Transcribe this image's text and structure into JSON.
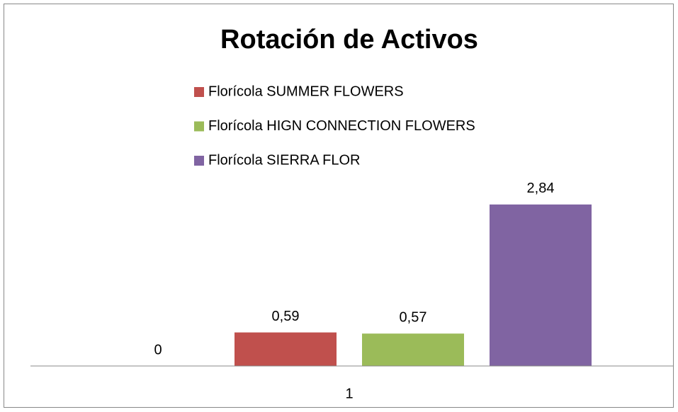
{
  "chart_data": {
    "type": "bar",
    "title": "Rotación de Activos",
    "categories": [
      "1"
    ],
    "series": [
      {
        "values": [
          0
        ]
      },
      {
        "name": "Florícola SUMMER FLOWERS",
        "color": "#c0504d",
        "values": [
          0.59
        ],
        "value_labels": [
          "0,59"
        ]
      },
      {
        "name": "Florícola HIGN CONNECTION FLOWERS",
        "color": "#9bbb59",
        "values": [
          0.57
        ],
        "value_labels": [
          "0,57"
        ]
      },
      {
        "name": "Florícola SIERRA FLOR",
        "color": "#8064a2",
        "values": [
          2.84
        ],
        "value_labels": [
          "2,84"
        ]
      }
    ],
    "ylim": [
      0,
      3
    ]
  }
}
